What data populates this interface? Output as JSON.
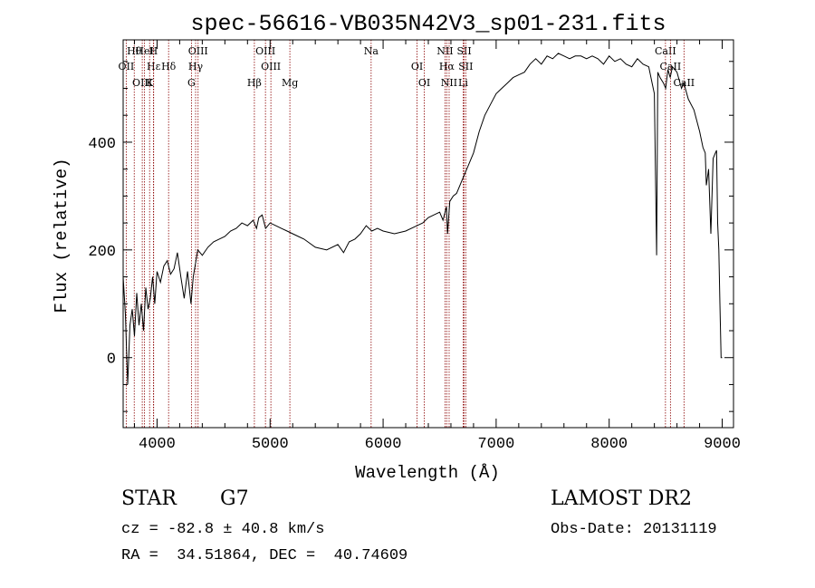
{
  "chart_data": {
    "type": "line",
    "title": "spec-56616-VB035N42V3_sp01-231.fits",
    "xlabel": "Wavelength (Å)",
    "ylabel": "Flux (relative)",
    "xlim": [
      3700,
      9100
    ],
    "ylim": [
      -130,
      590
    ],
    "xticks": [
      4000,
      5000,
      6000,
      7000,
      8000,
      9000
    ],
    "yticks": [
      0,
      200,
      400
    ],
    "grid": false,
    "line_color": "#000000",
    "marker_color": "#8b0000",
    "series": [
      {
        "x": [
          3700,
          3720,
          3740,
          3760,
          3780,
          3800,
          3820,
          3840,
          3860,
          3880,
          3900,
          3920,
          3940,
          3960,
          3980,
          4000,
          4030,
          4060,
          4090,
          4120,
          4150,
          4180,
          4210,
          4240,
          4270,
          4300,
          4320,
          4340,
          4360,
          4400,
          4450,
          4500,
          4550,
          4600,
          4650,
          4700,
          4750,
          4800,
          4850,
          4880,
          4900,
          4930,
          4960,
          5000,
          5050,
          5100,
          5150,
          5200,
          5250,
          5300,
          5400,
          5500,
          5600,
          5650,
          5700,
          5750,
          5800,
          5850,
          5900,
          5950,
          6000,
          6100,
          6200,
          6300,
          6350,
          6400,
          6450,
          6500,
          6530,
          6560,
          6570,
          6590,
          6620,
          6650,
          6700,
          6750,
          6800,
          6850,
          6900,
          6950,
          7000,
          7050,
          7100,
          7150,
          7200,
          7250,
          7300,
          7350,
          7400,
          7450,
          7500,
          7550,
          7600,
          7650,
          7700,
          7750,
          7800,
          7850,
          7900,
          7950,
          8000,
          8050,
          8100,
          8150,
          8200,
          8250,
          8300,
          8350,
          8380,
          8400,
          8420,
          8430,
          8450,
          8480,
          8500,
          8520,
          8540,
          8560,
          8600,
          8620,
          8640,
          8660,
          8700,
          8750,
          8800,
          8830,
          8850,
          8860,
          8880,
          8900,
          8920,
          8940,
          8950,
          8960,
          8970,
          8980,
          8990,
          9000
        ],
        "values": [
          150,
          80,
          -50,
          60,
          90,
          40,
          120,
          60,
          100,
          50,
          130,
          90,
          110,
          150,
          100,
          160,
          140,
          170,
          180,
          155,
          165,
          195,
          150,
          110,
          160,
          100,
          150,
          175,
          200,
          190,
          205,
          215,
          220,
          225,
          235,
          240,
          250,
          245,
          255,
          240,
          260,
          265,
          240,
          250,
          245,
          240,
          235,
          230,
          225,
          220,
          205,
          200,
          210,
          195,
          215,
          220,
          230,
          245,
          235,
          240,
          235,
          230,
          235,
          245,
          250,
          260,
          265,
          270,
          255,
          280,
          230,
          290,
          300,
          305,
          330,
          355,
          380,
          420,
          450,
          470,
          490,
          500,
          510,
          520,
          525,
          530,
          545,
          555,
          545,
          560,
          555,
          565,
          560,
          555,
          560,
          560,
          555,
          560,
          555,
          545,
          560,
          550,
          555,
          545,
          540,
          555,
          545,
          540,
          510,
          490,
          190,
          530,
          520,
          510,
          500,
          535,
          520,
          540,
          530,
          515,
          500,
          510,
          480,
          460,
          420,
          390,
          380,
          320,
          350,
          230,
          370,
          380,
          385,
          250,
          200,
          100,
          0,
          0
        ]
      }
    ],
    "lines": [
      {
        "name": "Hθ",
        "x": 3798
      },
      {
        "name": "OII",
        "x": 3727
      },
      {
        "name": "OIII",
        "x": 3869
      },
      {
        "name": "HeI",
        "x": 3889
      },
      {
        "name": "Hε",
        "x": 3970
      },
      {
        "name": "K",
        "x": 3934
      },
      {
        "name": "H",
        "x": 3968
      },
      {
        "name": "Hδ",
        "x": 4102
      },
      {
        "name": "G",
        "x": 4304
      },
      {
        "name": "OIII",
        "x": 4363
      },
      {
        "name": "Hγ",
        "x": 4341
      },
      {
        "name": "Hβ",
        "x": 4861
      },
      {
        "name": "OIII",
        "x": 4959
      },
      {
        "name": "OIII",
        "x": 5007
      },
      {
        "name": "Mg",
        "x": 5175
      },
      {
        "name": "Na",
        "x": 5894
      },
      {
        "name": "OI",
        "x": 6300
      },
      {
        "name": "OI",
        "x": 6364
      },
      {
        "name": "NII",
        "x": 6548
      },
      {
        "name": "Hα",
        "x": 6563
      },
      {
        "name": "NII",
        "x": 6584
      },
      {
        "name": "SII",
        "x": 6717
      },
      {
        "name": "SII",
        "x": 6731
      },
      {
        "name": "Li",
        "x": 6708
      },
      {
        "name": "CaII",
        "x": 8498
      },
      {
        "name": "CaII",
        "x": 8542
      },
      {
        "name": "CaII",
        "x": 8662
      }
    ]
  },
  "footer": {
    "class": "STAR",
    "subclass": "G7",
    "survey": "LAMOST DR2",
    "cz": "cz = -82.8 ± 40.8 km/s",
    "obs_date": "Obs-Date: 20131119",
    "radec": "RA =  34.51864, DEC =  40.74609"
  }
}
